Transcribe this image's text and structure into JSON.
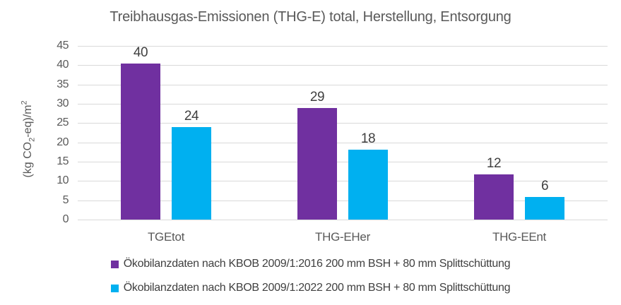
{
  "page": {
    "background": "#ffffff"
  },
  "colors": {
    "grid": "#d9d9d9",
    "axis_text": "#595959",
    "data_label_text": "#404040",
    "title_text": "#595959",
    "series_purple": "#7030a0",
    "series_cyan": "#00b0f0"
  },
  "chart_data": {
    "type": "bar",
    "title": "Treibhausgas-Emissionen (THG-E) total, Herstellung, Entsorgung",
    "ylabel": "(kg CO2-eq)/m2",
    "ylabel_parts": {
      "pre": "(kg CO",
      "sub": "2",
      "mid": "-eq)/m",
      "sup": "2"
    },
    "xlabel": "",
    "categories": [
      "TGEtot",
      "THG-EHer",
      "THG-EEnt"
    ],
    "series": [
      {
        "name": "Ökobilanzdaten nach KBOB 2009/1:2016 200 mm BSH + 80 mm Splittschüttung",
        "color": "#7030a0",
        "values": [
          40.5,
          28.9,
          11.7
        ],
        "labels": [
          "40",
          "29",
          "12"
        ]
      },
      {
        "name": "Ökobilanzdaten nach KBOB 2009/1:2022 200 mm BSH + 80 mm Splittschüttung",
        "color": "#00b0f0",
        "values": [
          24.0,
          18.2,
          5.8
        ],
        "labels": [
          "24",
          "18",
          "6"
        ]
      }
    ],
    "ylim": [
      0,
      45
    ],
    "ytick_step": 5,
    "yticks": [
      45,
      40,
      35,
      30,
      25,
      20,
      15,
      10,
      5,
      0
    ],
    "grid": true,
    "legend_position": "bottom"
  }
}
